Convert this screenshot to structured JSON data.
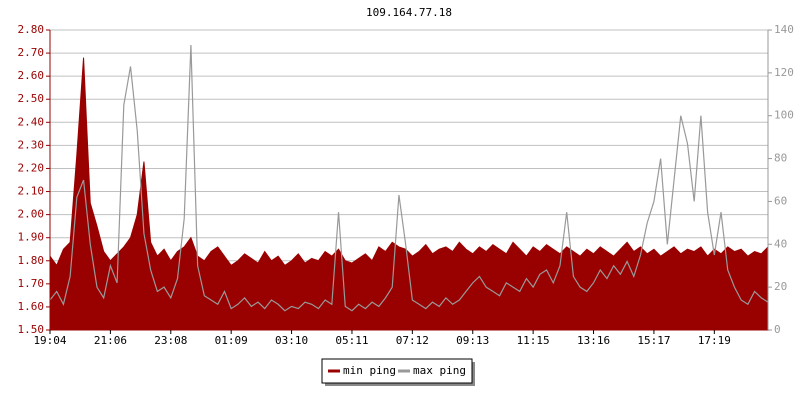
{
  "chart_data": {
    "type": "line",
    "title": "109.164.77.18",
    "categories": [
      "19:04",
      null,
      null,
      null,
      null,
      null,
      null,
      null,
      null,
      "21:06",
      null,
      null,
      null,
      null,
      null,
      null,
      null,
      null,
      "23:08",
      null,
      null,
      null,
      null,
      null,
      null,
      null,
      null,
      "01:09",
      null,
      null,
      null,
      null,
      null,
      null,
      null,
      null,
      "03:10",
      null,
      null,
      null,
      null,
      null,
      null,
      null,
      null,
      "05:11",
      null,
      null,
      null,
      null,
      null,
      null,
      null,
      null,
      "07:12",
      null,
      null,
      null,
      null,
      null,
      null,
      null,
      null,
      "09:13",
      null,
      null,
      null,
      null,
      null,
      null,
      null,
      null,
      "11:15",
      null,
      null,
      null,
      null,
      null,
      null,
      null,
      null,
      "13:16",
      null,
      null,
      null,
      null,
      null,
      null,
      null,
      null,
      "15:17",
      null,
      null,
      null,
      null,
      null,
      null,
      null,
      null,
      "17:19",
      null,
      null,
      null,
      null,
      null,
      null,
      null,
      null
    ],
    "series": [
      {
        "name": "min ping",
        "color": "#990000",
        "axis": "y",
        "values": [
          1.82,
          1.78,
          1.85,
          1.88,
          2.26,
          2.68,
          2.05,
          1.95,
          1.84,
          1.8,
          1.83,
          1.86,
          1.9,
          2.0,
          2.23,
          1.88,
          1.82,
          1.85,
          1.8,
          1.84,
          1.86,
          1.9,
          1.82,
          1.8,
          1.84,
          1.86,
          1.82,
          1.78,
          1.8,
          1.83,
          1.81,
          1.79,
          1.84,
          1.8,
          1.82,
          1.78,
          1.8,
          1.83,
          1.79,
          1.81,
          1.8,
          1.84,
          1.82,
          1.85,
          1.8,
          1.79,
          1.81,
          1.83,
          1.8,
          1.86,
          1.84,
          1.88,
          1.86,
          1.85,
          1.82,
          1.84,
          1.87,
          1.83,
          1.85,
          1.86,
          1.84,
          1.88,
          1.85,
          1.83,
          1.86,
          1.84,
          1.87,
          1.85,
          1.83,
          1.88,
          1.85,
          1.82,
          1.86,
          1.84,
          1.87,
          1.85,
          1.83,
          1.86,
          1.84,
          1.82,
          1.85,
          1.83,
          1.86,
          1.84,
          1.82,
          1.85,
          1.88,
          1.84,
          1.86,
          1.83,
          1.85,
          1.82,
          1.84,
          1.86,
          1.83,
          1.85,
          1.84,
          1.86,
          1.82,
          1.85,
          1.83,
          1.86,
          1.84,
          1.85,
          1.82,
          1.84,
          1.83,
          1.86
        ]
      },
      {
        "name": "max ping",
        "color": "#999999",
        "axis": "y2",
        "values": [
          14,
          18,
          12,
          25,
          62,
          70,
          40,
          20,
          15,
          30,
          22,
          105,
          123,
          93,
          45,
          28,
          18,
          20,
          15,
          24,
          52,
          133,
          30,
          16,
          14,
          12,
          18,
          10,
          12,
          15,
          11,
          13,
          10,
          14,
          12,
          9,
          11,
          10,
          13,
          12,
          10,
          14,
          12,
          55,
          11,
          9,
          12,
          10,
          13,
          11,
          15,
          20,
          63,
          40,
          14,
          12,
          10,
          13,
          11,
          15,
          12,
          14,
          18,
          22,
          25,
          20,
          18,
          16,
          22,
          20,
          18,
          24,
          20,
          26,
          28,
          22,
          30,
          55,
          25,
          20,
          18,
          22,
          28,
          24,
          30,
          26,
          32,
          25,
          35,
          50,
          60,
          80,
          40,
          70,
          100,
          87,
          60,
          100,
          55,
          35,
          55,
          28,
          20,
          14,
          12,
          18,
          15,
          13
        ]
      }
    ],
    "ylim": [
      1.5,
      2.8
    ],
    "yticks": [
      {
        "value": 1.5,
        "label": "1.50"
      },
      {
        "value": 1.6,
        "label": "1.60"
      },
      {
        "value": 1.7,
        "label": "1.70"
      },
      {
        "value": 1.8,
        "label": "1.80"
      },
      {
        "value": 1.9,
        "label": "1.90"
      },
      {
        "value": 2.0,
        "label": "2.00"
      },
      {
        "value": 2.1,
        "label": "2.10"
      },
      {
        "value": 2.2,
        "label": "2.20"
      },
      {
        "value": 2.3,
        "label": "2.30"
      },
      {
        "value": 2.4,
        "label": "2.40"
      },
      {
        "value": 2.5,
        "label": "2.50"
      },
      {
        "value": 2.6,
        "label": "2.60"
      },
      {
        "value": 2.7,
        "label": "2.70"
      },
      {
        "value": 2.8,
        "label": "2.80"
      }
    ],
    "y2lim": [
      0,
      140
    ],
    "y2ticks": [
      0,
      20,
      40,
      60,
      80,
      100,
      120,
      140
    ],
    "grid": true
  }
}
